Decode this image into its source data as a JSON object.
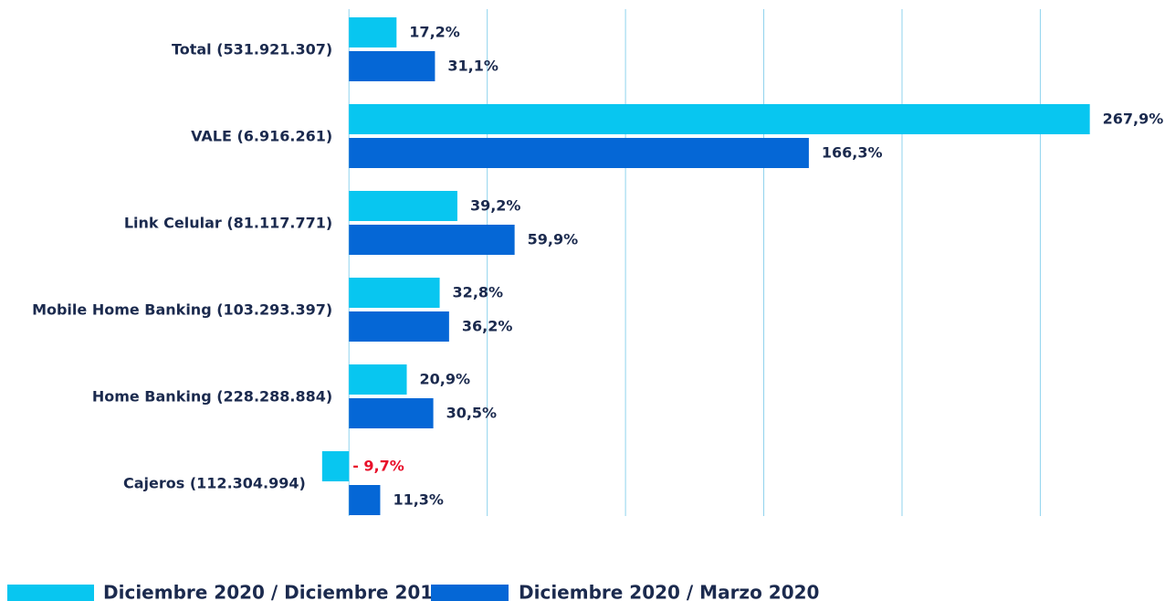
{
  "chart_data": {
    "type": "bar",
    "orientation": "horizontal",
    "categories": [
      "Total (531.921.307)",
      "VALE (6.916.261)",
      "Link Celular (81.117.771)",
      "Mobile Home Banking (103.293.397)",
      "Home Banking (228.288.884)",
      "Cajeros (112.304.994)"
    ],
    "series": [
      {
        "name": "Diciembre 2020 / Diciembre 2019",
        "color": "#08c6f0",
        "values": [
          17.2,
          267.9,
          39.2,
          32.8,
          20.9,
          -9.7
        ],
        "value_labels": [
          "17,2%",
          "267,9%",
          "39,2%",
          "32,8%",
          "20,9%",
          "- 9,7%"
        ]
      },
      {
        "name": "Diciembre 2020 / Marzo 2020",
        "color": "#0567d6",
        "values": [
          31.1,
          166.3,
          59.9,
          36.2,
          30.5,
          11.3
        ],
        "value_labels": [
          "31,1%",
          "166,3%",
          "59,9%",
          "36,2%",
          "30,5%",
          "11,3%"
        ]
      }
    ],
    "xlim": [
      -42,
      270
    ],
    "xticks": [
      0,
      50,
      100,
      150,
      200,
      250
    ],
    "grid": true,
    "negative_label_color": "#e8102a",
    "legend": "bottom"
  }
}
